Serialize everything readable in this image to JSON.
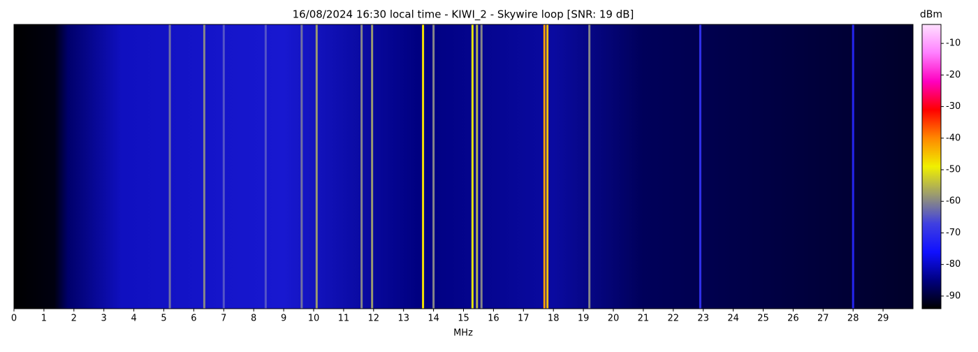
{
  "chart_data": {
    "type": "waterfall",
    "title": "16/08/2024 16:30 local time - KIWI_2 - Skywire loop [SNR: 19 dB]",
    "x_label": "MHz",
    "colorbar_label": "dBm",
    "xlim": [
      0,
      30
    ],
    "xticks": [
      0,
      1,
      2,
      3,
      4,
      5,
      6,
      7,
      8,
      9,
      10,
      11,
      12,
      13,
      14,
      15,
      16,
      17,
      18,
      19,
      20,
      21,
      22,
      23,
      24,
      25,
      26,
      27,
      28,
      29
    ],
    "clim": [
      -94,
      -4
    ],
    "cticks": [
      -90,
      -80,
      -70,
      -60,
      -50,
      -40,
      -30,
      -20,
      -10
    ],
    "colormap": [
      "#000000",
      "#000080",
      "#1010ff",
      "#4040e0",
      "#9a9a70",
      "#f0f000",
      "#ff8800",
      "#ff0000",
      "#ff00c0",
      "#ff80ff",
      "#ffe0ff"
    ],
    "signals": {
      "x": [
        5.2,
        6.35,
        7.0,
        8.4,
        9.6,
        10.1,
        11.6,
        11.95,
        13.65,
        14.0,
        15.3,
        15.45,
        15.6,
        17.7,
        17.8,
        19.2,
        22.9,
        28.0
      ],
      "values": [
        -62,
        -60,
        -65,
        -65,
        -62,
        -58,
        -60,
        -58,
        -48,
        -60,
        -50,
        -55,
        -60,
        -42,
        -45,
        -60,
        -70,
        -72
      ]
    }
  }
}
